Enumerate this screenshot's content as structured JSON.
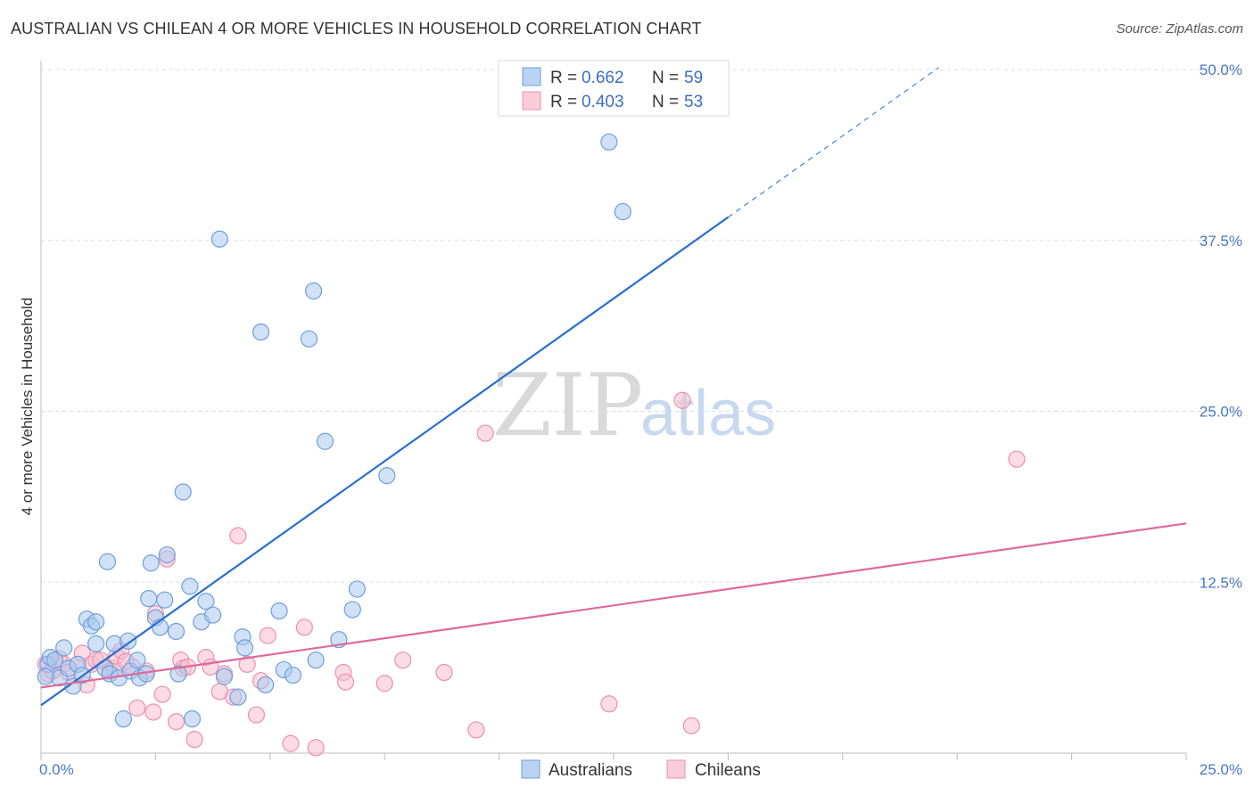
{
  "title": "AUSTRALIAN VS CHILEAN 4 OR MORE VEHICLES IN HOUSEHOLD CORRELATION CHART",
  "source": "Source: ZipAtlas.com",
  "watermark": {
    "zip": "ZIP",
    "atlas": "atlas"
  },
  "colors": {
    "blue_fill": "#a9c8ef",
    "blue_stroke": "#6d9fdc",
    "blue_line": "#2a6fcf",
    "pink_fill": "#f7bfd0",
    "pink_stroke": "#ec8fae",
    "pink_line": "#e0699a",
    "grid": "#dddddd",
    "tick_text": "#4a78c2"
  },
  "legend": {
    "rows": [
      {
        "r_label": "R =",
        "r_value": "0.662",
        "n_label": "N =",
        "n_value": "59"
      },
      {
        "r_label": "R =",
        "r_value": "0.403",
        "n_label": "N =",
        "n_value": "53"
      }
    ]
  },
  "chart_data": {
    "type": "scatter",
    "title": "AUSTRALIAN VS CHILEAN 4 OR MORE VEHICLES IN HOUSEHOLD CORRELATION CHART",
    "xlabel": "",
    "ylabel": "4 or more Vehicles in Household",
    "xlim": [
      0,
      25
    ],
    "ylim": [
      0,
      50
    ],
    "x_tick_labels": {
      "min": "0.0%",
      "max": "25.0%"
    },
    "y_ticks": [
      {
        "value": 12.5,
        "label": "12.5%"
      },
      {
        "value": 25.0,
        "label": "25.0%"
      },
      {
        "value": 37.5,
        "label": "37.5%"
      },
      {
        "value": 50.0,
        "label": "50.0%"
      }
    ],
    "series": [
      {
        "name": "Australians",
        "r": 0.662,
        "n": 59,
        "trend": {
          "x0": 0,
          "y0": 3.5,
          "x1": 15,
          "y1": 39.2,
          "dash_to_x": 19.6
        },
        "points": [
          [
            0.15,
            6.5
          ],
          [
            0.2,
            7.0
          ],
          [
            0.3,
            6.8
          ],
          [
            0.4,
            5.5
          ],
          [
            0.5,
            7.7
          ],
          [
            0.6,
            6.2
          ],
          [
            0.7,
            4.9
          ],
          [
            0.8,
            6.5
          ],
          [
            0.9,
            5.7
          ],
          [
            1.0,
            9.8
          ],
          [
            1.1,
            9.3
          ],
          [
            1.2,
            9.6
          ],
          [
            1.2,
            8.0
          ],
          [
            1.4,
            6.2
          ],
          [
            1.45,
            14.0
          ],
          [
            1.5,
            5.8
          ],
          [
            1.6,
            8.0
          ],
          [
            1.7,
            5.5
          ],
          [
            1.8,
            2.5
          ],
          [
            1.9,
            8.2
          ],
          [
            1.95,
            6.0
          ],
          [
            2.1,
            6.8
          ],
          [
            2.15,
            5.5
          ],
          [
            2.3,
            5.8
          ],
          [
            2.35,
            11.3
          ],
          [
            2.4,
            13.9
          ],
          [
            2.5,
            9.9
          ],
          [
            2.6,
            9.2
          ],
          [
            2.7,
            11.2
          ],
          [
            2.75,
            14.5
          ],
          [
            2.95,
            8.9
          ],
          [
            3.0,
            5.8
          ],
          [
            3.1,
            19.1
          ],
          [
            3.25,
            12.2
          ],
          [
            3.3,
            2.5
          ],
          [
            3.5,
            9.6
          ],
          [
            3.6,
            11.1
          ],
          [
            3.75,
            10.1
          ],
          [
            3.9,
            37.6
          ],
          [
            4.0,
            5.6
          ],
          [
            4.3,
            4.1
          ],
          [
            4.4,
            8.5
          ],
          [
            4.45,
            7.7
          ],
          [
            4.8,
            30.8
          ],
          [
            4.9,
            5.0
          ],
          [
            5.2,
            10.4
          ],
          [
            5.3,
            6.1
          ],
          [
            5.5,
            5.7
          ],
          [
            5.85,
            30.3
          ],
          [
            5.95,
            33.8
          ],
          [
            6.0,
            6.8
          ],
          [
            6.2,
            22.8
          ],
          [
            6.5,
            8.3
          ],
          [
            6.8,
            10.5
          ],
          [
            6.9,
            12.0
          ],
          [
            7.55,
            20.3
          ],
          [
            12.4,
            44.7
          ],
          [
            12.7,
            39.6
          ],
          [
            0.1,
            5.6
          ]
        ]
      },
      {
        "name": "Chileans",
        "r": 0.403,
        "n": 53,
        "trend": {
          "x0": 0,
          "y0": 4.8,
          "x1": 25,
          "y1": 16.8
        },
        "points": [
          [
            0.1,
            6.5
          ],
          [
            0.15,
            5.8
          ],
          [
            0.25,
            6.0
          ],
          [
            0.4,
            6.9
          ],
          [
            0.5,
            6.5
          ],
          [
            0.6,
            5.9
          ],
          [
            0.8,
            6.5
          ],
          [
            0.9,
            7.3
          ],
          [
            1.0,
            5.0
          ],
          [
            1.1,
            6.5
          ],
          [
            1.2,
            6.8
          ],
          [
            1.3,
            6.8
          ],
          [
            1.5,
            6.0
          ],
          [
            1.6,
            6.2
          ],
          [
            1.65,
            7.1
          ],
          [
            1.75,
            7.5
          ],
          [
            1.85,
            6.7
          ],
          [
            2.0,
            6.3
          ],
          [
            2.1,
            3.3
          ],
          [
            2.3,
            6.0
          ],
          [
            2.45,
            3.0
          ],
          [
            2.5,
            10.2
          ],
          [
            2.65,
            4.3
          ],
          [
            2.75,
            14.2
          ],
          [
            2.95,
            2.3
          ],
          [
            3.05,
            6.8
          ],
          [
            3.1,
            6.2
          ],
          [
            3.2,
            6.3
          ],
          [
            3.35,
            1.0
          ],
          [
            3.6,
            7.0
          ],
          [
            3.7,
            6.3
          ],
          [
            3.9,
            4.5
          ],
          [
            4.0,
            5.8
          ],
          [
            4.2,
            4.1
          ],
          [
            4.3,
            15.9
          ],
          [
            4.5,
            6.5
          ],
          [
            4.7,
            2.8
          ],
          [
            4.8,
            5.3
          ],
          [
            4.95,
            8.6
          ],
          [
            5.45,
            0.7
          ],
          [
            5.75,
            9.2
          ],
          [
            6.0,
            0.4
          ],
          [
            6.6,
            5.9
          ],
          [
            6.65,
            5.2
          ],
          [
            7.5,
            5.1
          ],
          [
            7.9,
            6.8
          ],
          [
            8.8,
            5.9
          ],
          [
            9.5,
            1.7
          ],
          [
            9.7,
            23.4
          ],
          [
            12.4,
            3.6
          ],
          [
            14.0,
            25.8
          ],
          [
            14.2,
            2.0
          ],
          [
            21.3,
            21.5
          ]
        ]
      }
    ]
  },
  "bottom_legend": [
    {
      "label": "Australians"
    },
    {
      "label": "Chileans"
    }
  ]
}
